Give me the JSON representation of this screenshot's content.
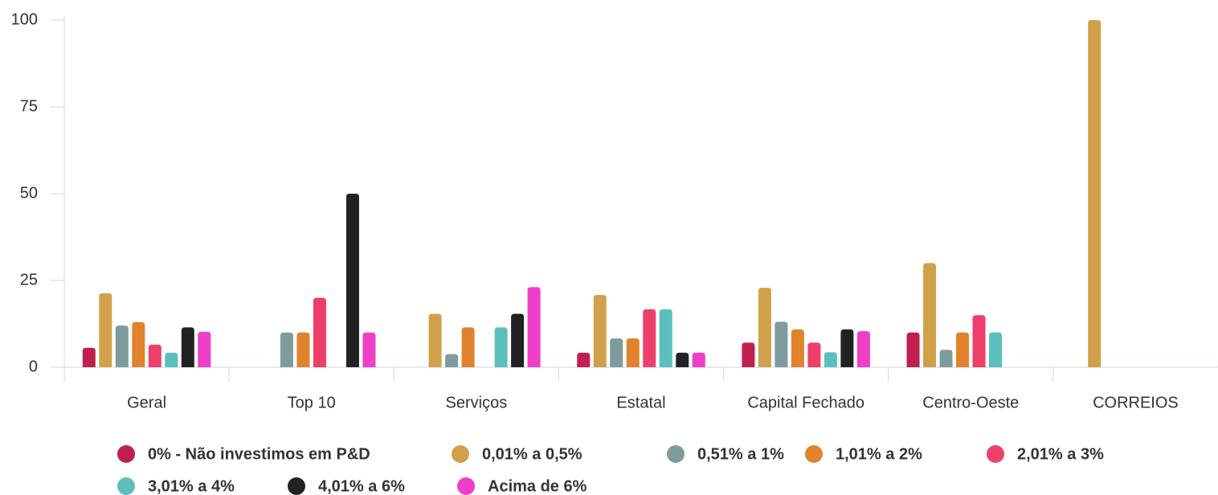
{
  "chart_data": {
    "type": "bar",
    "categories": [
      "Geral",
      "Top 10",
      "Serviços",
      "Estatal",
      "Capital Fechado",
      "Centro-Oeste",
      "CORREIOS"
    ],
    "series": [
      {
        "name": "0% - Não investimos em P&D",
        "color": "#c0204f",
        "values": [
          5.6,
          null,
          null,
          4.2,
          7.1,
          10,
          null
        ]
      },
      {
        "name": "0,01% a 0,5%",
        "color": "#d0a14a",
        "values": [
          21.3,
          null,
          15.4,
          20.8,
          22.9,
          30,
          100
        ]
      },
      {
        "name": "0,51% a 1%",
        "color": "#7f9c9c",
        "values": [
          12,
          10,
          3.8,
          8.3,
          13.1,
          5,
          null
        ]
      },
      {
        "name": "1,01% a 2%",
        "color": "#e0832c",
        "values": [
          13,
          10,
          11.5,
          8.3,
          10.9,
          10,
          null
        ]
      },
      {
        "name": "2,01% a 3%",
        "color": "#ee3f6a",
        "values": [
          6.5,
          20,
          null,
          16.7,
          7.1,
          15,
          null
        ]
      },
      {
        "name": "3,01% a 4%",
        "color": "#5bbfbd",
        "values": [
          4.2,
          null,
          11.5,
          16.7,
          4.3,
          10,
          null
        ]
      },
      {
        "name": "4,01% a 6%",
        "color": "#222222",
        "values": [
          11.5,
          50,
          15.4,
          4.2,
          10.9,
          null,
          null
        ]
      },
      {
        "name": "Acima de 6%",
        "color": "#ef3fc6",
        "values": [
          10.2,
          10,
          23.1,
          4.2,
          10.4,
          null,
          null
        ]
      }
    ],
    "ylim": [
      0,
      100
    ],
    "yticks": [
      0,
      25,
      50,
      75,
      100
    ],
    "grid": false,
    "legend": "bottom"
  }
}
